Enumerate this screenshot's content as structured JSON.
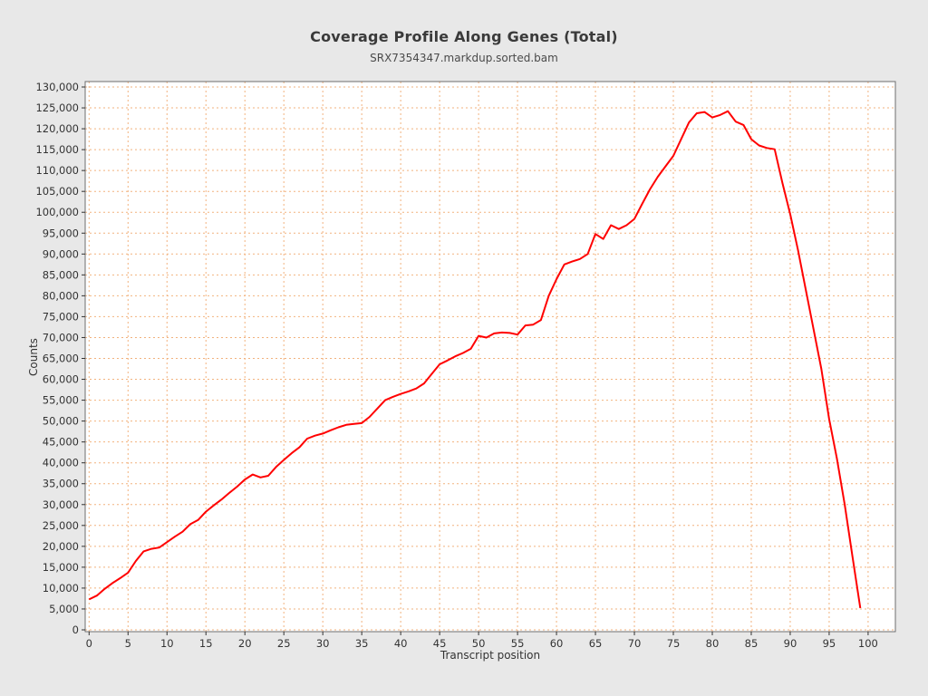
{
  "header": {
    "title": "Coverage Profile Along Genes (Total)",
    "subtitle": "SRX7354347.markdup.sorted.bam"
  },
  "colors": {
    "page_background": "#e8e8e8",
    "plot_background": "#ffffff",
    "grid": "#f2b27e",
    "line": "#ff0000",
    "frame": "#6e6e6e",
    "tick": "#333333",
    "text": "#333333"
  },
  "chart_data": {
    "type": "line",
    "title": "Coverage Profile Along Genes (Total)",
    "subtitle": "SRX7354347.markdup.sorted.bam",
    "xlabel": "Transcript position",
    "ylabel": "Counts",
    "xlim": [
      -0.5,
      103.5
    ],
    "ylim": [
      0,
      130000
    ],
    "grid": true,
    "legend": "none",
    "x_ticks": [
      0,
      5,
      10,
      15,
      20,
      25,
      30,
      35,
      40,
      45,
      50,
      55,
      60,
      65,
      70,
      75,
      80,
      85,
      90,
      95,
      100
    ],
    "y_ticks": [
      0,
      5000,
      10000,
      15000,
      20000,
      25000,
      30000,
      35000,
      40000,
      45000,
      50000,
      55000,
      60000,
      65000,
      70000,
      75000,
      80000,
      85000,
      90000,
      95000,
      100000,
      105000,
      110000,
      115000,
      120000,
      125000,
      130000
    ],
    "series": [
      {
        "name": "SRX7354347.markdup.sorted.bam",
        "x": [
          0,
          1,
          2,
          3,
          4,
          5,
          6,
          7,
          8,
          9,
          10,
          11,
          12,
          13,
          14,
          15,
          16,
          17,
          18,
          19,
          20,
          21,
          22,
          23,
          24,
          25,
          26,
          27,
          28,
          29,
          30,
          31,
          32,
          33,
          34,
          35,
          36,
          37,
          38,
          39,
          40,
          41,
          42,
          43,
          44,
          45,
          46,
          47,
          48,
          49,
          50,
          51,
          52,
          53,
          54,
          55,
          56,
          57,
          58,
          59,
          60,
          61,
          62,
          63,
          64,
          65,
          66,
          67,
          68,
          69,
          70,
          71,
          72,
          73,
          74,
          75,
          76,
          77,
          78,
          79,
          80,
          81,
          82,
          83,
          84,
          85,
          86,
          87,
          88,
          89,
          90,
          91,
          92,
          93,
          94,
          95,
          96,
          97,
          98,
          99
        ],
        "y": [
          7300,
          8200,
          9800,
          11200,
          12400,
          13700,
          16500,
          18800,
          19400,
          19700,
          21000,
          22300,
          23500,
          25300,
          26300,
          28300,
          29800,
          31200,
          32800,
          34300,
          36000,
          37200,
          36500,
          36900,
          39000,
          40700,
          42300,
          43700,
          45800,
          46500,
          47000,
          47800,
          48500,
          49100,
          49300,
          49500,
          51000,
          53000,
          55000,
          55800,
          56500,
          57100,
          57800,
          59000,
          61300,
          63600,
          64500,
          65500,
          66300,
          67300,
          70400,
          70000,
          71000,
          71200,
          71100,
          70700,
          72900,
          73100,
          74200,
          80000,
          84000,
          87500,
          88200,
          88800,
          90000,
          94800,
          93600,
          96900,
          96000,
          96900,
          98400,
          102000,
          105500,
          108500,
          111000,
          113500,
          117500,
          121500,
          123700,
          124000,
          122700,
          123300,
          124200,
          121700,
          120900,
          117500,
          116000,
          115400,
          115100,
          107000,
          99500,
          91000,
          81500,
          72000,
          62500,
          50500,
          41000,
          30000,
          17500,
          5200
        ]
      }
    ]
  }
}
